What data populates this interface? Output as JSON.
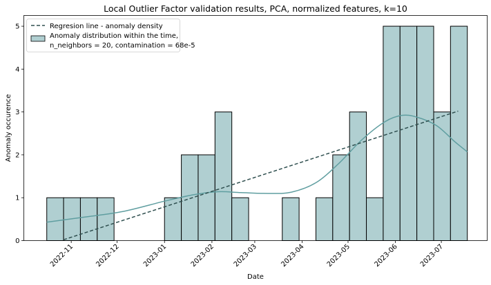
{
  "chart_data": {
    "type": "bar",
    "title": "Local Outlier Factor validation results, PCA, normalized features, k=10",
    "xlabel": "Date",
    "ylabel": "Anomaly occurence",
    "ylim": [
      0,
      5.25
    ],
    "yticks": [
      "0",
      "1",
      "2",
      "3",
      "4",
      "5"
    ],
    "xticks": [
      "2022-11",
      "2022-12",
      "2023-01",
      "2023-02",
      "2023-03",
      "2023-04",
      "2023-05",
      "2023-06",
      "2023-07"
    ],
    "x_unit": "date",
    "bins": [
      {
        "start": "2022-10-16",
        "count": 1
      },
      {
        "start": "2022-10-27",
        "count": 1
      },
      {
        "start": "2022-11-07",
        "count": 1
      },
      {
        "start": "2022-11-18",
        "count": 1
      },
      {
        "start": "2022-11-29",
        "count": 0
      },
      {
        "start": "2022-12-10",
        "count": 0
      },
      {
        "start": "2022-12-21",
        "count": 0
      },
      {
        "start": "2023-01-01",
        "count": 1
      },
      {
        "start": "2023-01-12",
        "count": 2
      },
      {
        "start": "2023-01-23",
        "count": 2
      },
      {
        "start": "2023-02-03",
        "count": 3
      },
      {
        "start": "2023-02-14",
        "count": 1
      },
      {
        "start": "2023-02-25",
        "count": 0
      },
      {
        "start": "2023-03-08",
        "count": 0
      },
      {
        "start": "2023-03-19",
        "count": 1
      },
      {
        "start": "2023-03-30",
        "count": 0
      },
      {
        "start": "2023-04-10",
        "count": 1
      },
      {
        "start": "2023-04-21",
        "count": 2
      },
      {
        "start": "2023-05-02",
        "count": 3
      },
      {
        "start": "2023-05-13",
        "count": 1
      },
      {
        "start": "2023-05-24",
        "count": 5
      },
      {
        "start": "2023-06-04",
        "count": 5
      },
      {
        "start": "2023-06-15",
        "count": 5
      },
      {
        "start": "2023-06-26",
        "count": 3
      },
      {
        "start": "2023-07-07",
        "count": 5
      }
    ],
    "bin_end": "2023-07-18",
    "kde": [
      {
        "x": "2022-10-16",
        "y": 0.43
      },
      {
        "x": "2022-11-10",
        "y": 0.55
      },
      {
        "x": "2022-12-05",
        "y": 0.68
      },
      {
        "x": "2023-01-01",
        "y": 0.92
      },
      {
        "x": "2023-01-20",
        "y": 1.07
      },
      {
        "x": "2023-02-05",
        "y": 1.14
      },
      {
        "x": "2023-02-20",
        "y": 1.12
      },
      {
        "x": "2023-03-10",
        "y": 1.1
      },
      {
        "x": "2023-03-25",
        "y": 1.13
      },
      {
        "x": "2023-04-10",
        "y": 1.35
      },
      {
        "x": "2023-04-25",
        "y": 1.8
      },
      {
        "x": "2023-05-10",
        "y": 2.35
      },
      {
        "x": "2023-05-25",
        "y": 2.77
      },
      {
        "x": "2023-06-05",
        "y": 2.92
      },
      {
        "x": "2023-06-15",
        "y": 2.88
      },
      {
        "x": "2023-06-28",
        "y": 2.68
      },
      {
        "x": "2023-07-10",
        "y": 2.3
      },
      {
        "x": "2023-07-18",
        "y": 2.07
      }
    ],
    "regression": [
      {
        "x": "2022-10-27",
        "y": 0.02
      },
      {
        "x": "2023-07-12",
        "y": 3.02
      }
    ],
    "legend": {
      "position": "top-left",
      "entries": [
        {
          "label": "Regresion line - anomaly density",
          "kind": "dashed-line"
        },
        {
          "label": "Anomaly distribution within the time,",
          "label2": "n_neighbors = 20, contamination = 68e-5",
          "kind": "patch"
        }
      ]
    },
    "colors": {
      "bar_fill": "#b0cfd1",
      "bar_edge": "#000000",
      "kde": "#5f9ea0",
      "regression": "#2f4f4f"
    }
  }
}
